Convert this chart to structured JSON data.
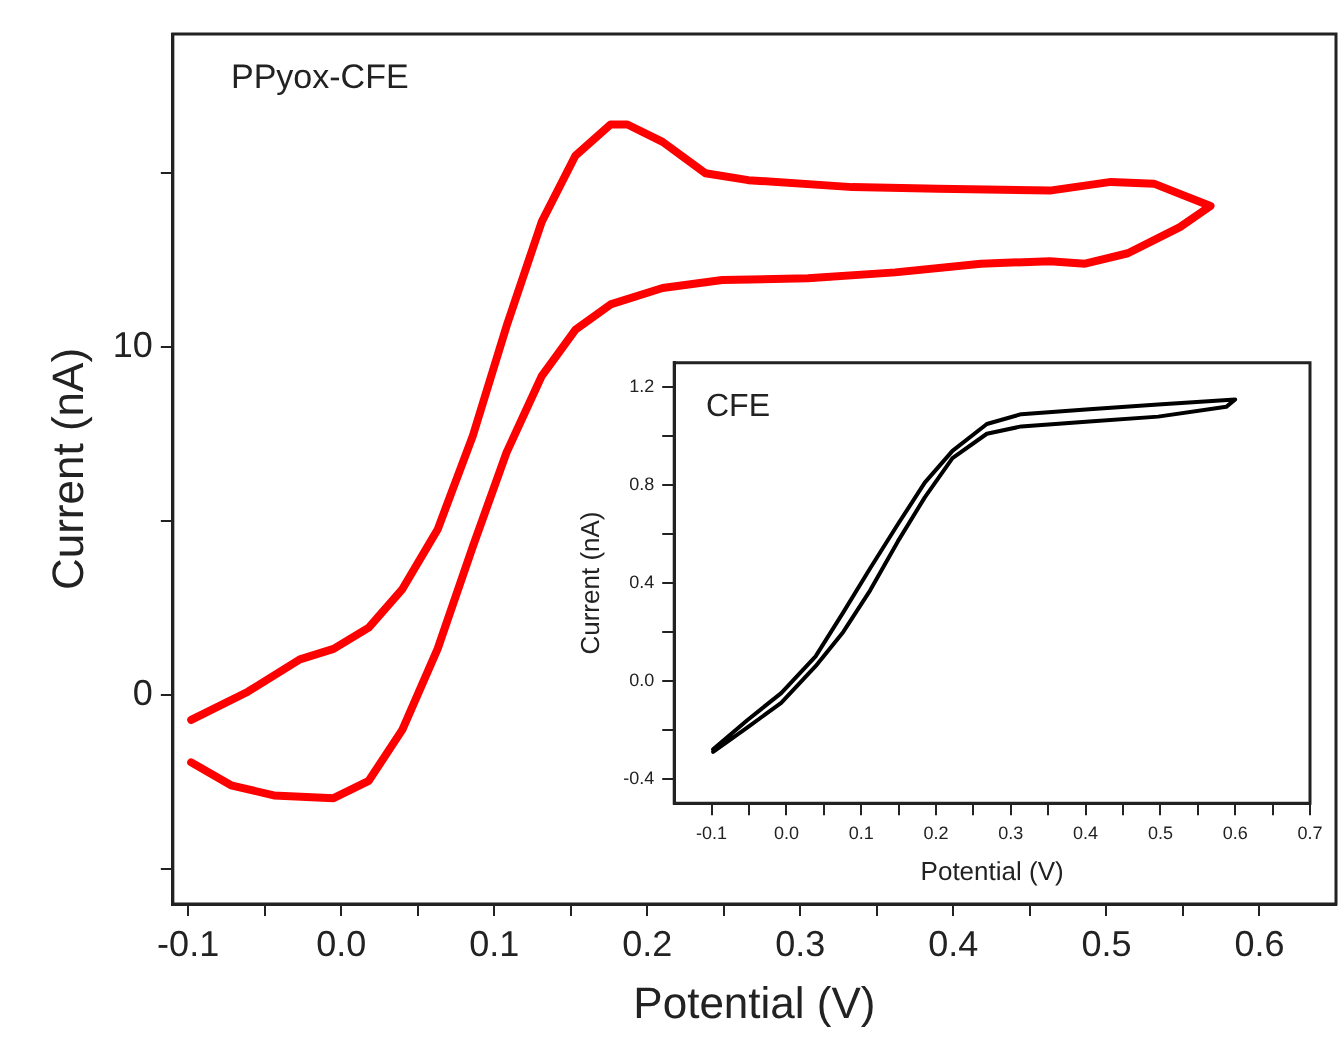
{
  "chart_data": [
    {
      "type": "line",
      "xlabel": "Potential (V)",
      "ylabel": "Current (nA)",
      "annotations": [
        "PPyox-CFE"
      ],
      "marker": "none",
      "line_style": "solid",
      "xlim": [
        -0.11,
        0.65
      ],
      "xticks": [
        -0.1,
        {
          "value": -0.05,
          "label": null
        },
        {
          "value": 0,
          "label": "0.0"
        },
        {
          "value": 0.05,
          "label": null
        },
        0.1,
        {
          "value": 0.15,
          "label": null
        },
        0.2,
        {
          "value": 0.25,
          "label": null
        },
        0.3,
        {
          "value": 0.35,
          "label": null
        },
        0.4,
        {
          "value": 0.45,
          "label": null
        },
        0.5,
        {
          "value": 0.55,
          "label": null
        },
        0.6
      ],
      "ylim": [
        -6,
        19
      ],
      "yticks": [
        {
          "value": -5,
          "label": null
        },
        0,
        {
          "value": 5,
          "label": null
        },
        10,
        {
          "value": 15,
          "label": null
        }
      ],
      "series": [
        {
          "color": "#ff0000",
          "x": [
            -0.098,
            -0.061,
            -0.027,
            -0.005,
            0.018,
            0.04,
            0.063,
            0.086,
            0.108,
            0.131,
            0.153,
            0.176,
            0.187,
            0.21,
            0.238,
            0.266,
            0.334,
            0.39,
            0.463,
            0.503,
            0.531,
            0.568,
            0.548,
            0.514,
            0.486,
            0.463,
            0.418,
            0.362,
            0.305,
            0.249,
            0.21,
            0.176,
            0.153,
            0.131,
            0.108,
            0.086,
            0.063,
            0.04,
            0.018,
            -0.005,
            -0.044,
            -0.072,
            -0.098
          ],
          "values": [
            -0.71,
            0.1,
            1.03,
            1.33,
            1.94,
            3.05,
            4.76,
            7.45,
            10.6,
            13.6,
            15.5,
            16.4,
            16.4,
            15.9,
            15.0,
            14.8,
            14.6,
            14.55,
            14.5,
            14.75,
            14.7,
            14.06,
            13.45,
            12.7,
            12.4,
            12.47,
            12.4,
            12.15,
            11.98,
            11.93,
            11.7,
            11.23,
            10.5,
            9.17,
            6.97,
            4.27,
            1.33,
            -0.99,
            -2.46,
            -2.96,
            -2.88,
            -2.59,
            -1.93
          ]
        }
      ]
    },
    {
      "type": "line",
      "xlabel": "Potential (V)",
      "ylabel": "Current (nA)",
      "annotations": [
        "CFE"
      ],
      "marker": "none",
      "line_style": "solid",
      "xlim": [
        -0.15,
        0.7
      ],
      "xticks": [
        -0.1,
        {
          "value": -0.05,
          "label": null
        },
        {
          "value": 0,
          "label": "0.0"
        },
        {
          "value": 0.05,
          "label": null
        },
        0.1,
        {
          "value": 0.15,
          "label": null
        },
        0.2,
        {
          "value": 0.25,
          "label": null
        },
        0.3,
        {
          "value": 0.35,
          "label": null
        },
        0.4,
        {
          "value": 0.45,
          "label": null
        },
        0.5,
        {
          "value": 0.55,
          "label": null
        },
        0.6,
        {
          "value": 0.65,
          "label": null
        },
        0.7
      ],
      "ylim": [
        -0.5,
        1.3
      ],
      "yticks": [
        -0.4,
        {
          "value": -0.2,
          "label": null
        },
        {
          "value": 0,
          "label": "0.0"
        },
        {
          "value": 0.2,
          "label": null
        },
        0.4,
        {
          "value": 0.6,
          "label": null
        },
        0.8,
        {
          "value": 1.0,
          "label": null
        },
        1.2
      ],
      "series": [
        {
          "color": "#000000",
          "x": [
            -0.098,
            -0.052,
            -0.007,
            0.039,
            0.076,
            0.112,
            0.149,
            0.185,
            0.222,
            0.268,
            0.314,
            0.405,
            0.497,
            0.6,
            0.588,
            0.497,
            0.405,
            0.314,
            0.268,
            0.222,
            0.185,
            0.149,
            0.112,
            0.076,
            0.039,
            -0.007,
            -0.052,
            -0.098
          ],
          "values": [
            -0.28,
            -0.16,
            -0.05,
            0.1,
            0.28,
            0.46,
            0.64,
            0.81,
            0.94,
            1.05,
            1.09,
            1.11,
            1.13,
            1.15,
            1.12,
            1.08,
            1.06,
            1.04,
            1.01,
            0.91,
            0.75,
            0.57,
            0.37,
            0.2,
            0.06,
            -0.09,
            -0.19,
            -0.29
          ]
        }
      ]
    }
  ]
}
